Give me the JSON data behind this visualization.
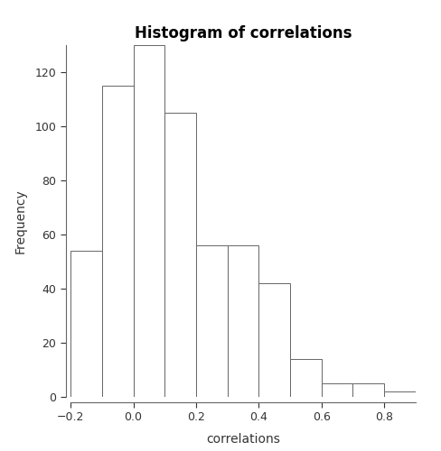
{
  "title": "Histogram of correlations",
  "xlabel": "correlations",
  "ylabel": "Frequency",
  "bin_edges": [
    -0.2,
    -0.1,
    0.0,
    0.1,
    0.2,
    0.3,
    0.4,
    0.5,
    0.6,
    0.7,
    0.8,
    0.9
  ],
  "counts": [
    54,
    115,
    130,
    105,
    56,
    56,
    42,
    14,
    5,
    5,
    2
  ],
  "bar_facecolor": "#ffffff",
  "bar_edgecolor": "#666666",
  "background_color": "#ffffff",
  "ylim": [
    0,
    130
  ],
  "yticks": [
    0,
    20,
    40,
    60,
    80,
    100,
    120
  ],
  "xticks": [
    -0.2,
    0.0,
    0.2,
    0.4,
    0.6,
    0.8
  ],
  "xlim": [
    -0.25,
    0.9
  ],
  "title_fontsize": 12,
  "label_fontsize": 10,
  "tick_fontsize": 9,
  "spine_color": "#666666",
  "spine_linewidth": 0.8,
  "bar_linewidth": 0.7
}
